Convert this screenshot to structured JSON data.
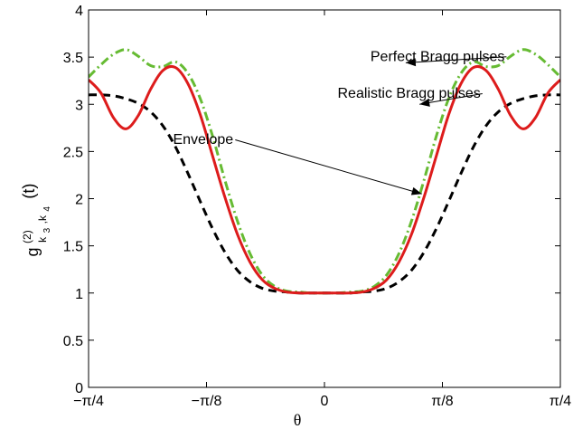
{
  "chart_data": {
    "type": "line",
    "xlabel": "θ",
    "ylabel": {
      "base": "g",
      "superscript": "(2)",
      "sub_main": "k",
      "sub_idx1": "3",
      "sub_sep": ",k",
      "sub_idx2": "4",
      "suffix": "(t)"
    },
    "xlim": [
      -0.7853981634,
      0.7853981634
    ],
    "ylim": [
      0,
      4
    ],
    "xticks": [
      {
        "value": -0.7853981634,
        "label": "−π/4"
      },
      {
        "value": -0.3926990817,
        "label": "−π/8"
      },
      {
        "value": 0,
        "label": "0"
      },
      {
        "value": 0.3926990817,
        "label": "π/8"
      },
      {
        "value": 0.7853981634,
        "label": "π/4"
      }
    ],
    "yticks": [
      {
        "value": 0,
        "label": "0"
      },
      {
        "value": 0.5,
        "label": "0.5"
      },
      {
        "value": 1,
        "label": "1"
      },
      {
        "value": 1.5,
        "label": "1.5"
      },
      {
        "value": 2,
        "label": "2"
      },
      {
        "value": 2.5,
        "label": "2.5"
      },
      {
        "value": 3,
        "label": "3"
      },
      {
        "value": 3.5,
        "label": "3.5"
      },
      {
        "value": 4,
        "label": "4"
      }
    ],
    "grid": false,
    "series": [
      {
        "name": "Perfect Bragg pulses",
        "color": "#66bb33",
        "dash": "dashdot",
        "x": [
          -0.7854,
          -0.7441,
          -0.7028,
          -0.6615,
          -0.6201,
          -0.5788,
          -0.5375,
          -0.4962,
          -0.4548,
          -0.4135,
          -0.3722,
          -0.3309,
          -0.2895,
          -0.2482,
          -0.2069,
          -0.1656,
          -0.1242,
          -0.0829,
          -0.0416,
          0.0,
          0.0416,
          0.0829,
          0.1242,
          0.1656,
          0.2069,
          0.2482,
          0.2895,
          0.3309,
          0.3722,
          0.4135,
          0.4548,
          0.4962,
          0.5375,
          0.5788,
          0.6201,
          0.6615,
          0.7028,
          0.7441,
          0.7854
        ],
        "y": [
          3.29,
          3.42,
          3.53,
          3.58,
          3.51,
          3.41,
          3.4,
          3.45,
          3.33,
          3.06,
          2.66,
          2.19,
          1.76,
          1.42,
          1.19,
          1.07,
          1.02,
          1.01,
          1.0,
          1.0,
          1.0,
          1.01,
          1.02,
          1.07,
          1.19,
          1.42,
          1.76,
          2.19,
          2.66,
          3.06,
          3.33,
          3.45,
          3.4,
          3.41,
          3.51,
          3.58,
          3.53,
          3.42,
          3.29
        ]
      },
      {
        "name": "Realistic Bragg pulses",
        "color": "#dd1c1c",
        "dash": "solid",
        "x": [
          -0.7854,
          -0.7441,
          -0.7028,
          -0.6615,
          -0.6201,
          -0.5788,
          -0.5375,
          -0.4962,
          -0.4548,
          -0.4135,
          -0.3722,
          -0.3309,
          -0.2895,
          -0.2482,
          -0.2069,
          -0.1656,
          -0.1242,
          -0.0829,
          -0.0416,
          0.0,
          0.0416,
          0.0829,
          0.1242,
          0.1656,
          0.2069,
          0.2482,
          0.2895,
          0.3309,
          0.3722,
          0.4135,
          0.4548,
          0.4962,
          0.5375,
          0.5788,
          0.6201,
          0.6615,
          0.7028,
          0.7441,
          0.7854
        ],
        "y": [
          3.26,
          3.12,
          2.86,
          2.74,
          2.88,
          3.16,
          3.36,
          3.39,
          3.22,
          2.89,
          2.45,
          2.01,
          1.62,
          1.33,
          1.14,
          1.05,
          1.01,
          1.0,
          1.0,
          1.0,
          1.0,
          1.0,
          1.01,
          1.05,
          1.14,
          1.33,
          1.62,
          2.01,
          2.45,
          2.89,
          3.22,
          3.39,
          3.36,
          3.16,
          2.88,
          2.74,
          2.86,
          3.12,
          3.26
        ]
      },
      {
        "name": "Envelope",
        "color": "#000000",
        "dash": "dashed",
        "x": [
          -0.7854,
          -0.7441,
          -0.7028,
          -0.6615,
          -0.6201,
          -0.5788,
          -0.5375,
          -0.4962,
          -0.4548,
          -0.4135,
          -0.3722,
          -0.3309,
          -0.2895,
          -0.2482,
          -0.2069,
          -0.1656,
          -0.1242,
          -0.0829,
          -0.0416,
          0.0,
          0.0416,
          0.0829,
          0.1242,
          0.1656,
          0.2069,
          0.2482,
          0.2895,
          0.3309,
          0.3722,
          0.4135,
          0.4548,
          0.4962,
          0.5375,
          0.5788,
          0.6201,
          0.6615,
          0.7028,
          0.7441,
          0.7854
        ],
        "y": [
          3.1,
          3.1,
          3.09,
          3.06,
          3.01,
          2.92,
          2.77,
          2.55,
          2.27,
          1.97,
          1.68,
          1.43,
          1.24,
          1.12,
          1.05,
          1.02,
          1.01,
          1.0,
          1.0,
          1.0,
          1.0,
          1.0,
          1.01,
          1.02,
          1.05,
          1.12,
          1.24,
          1.43,
          1.68,
          1.97,
          2.27,
          2.55,
          2.77,
          2.92,
          3.01,
          3.06,
          3.09,
          3.1,
          3.1
        ]
      }
    ],
    "annotations": [
      {
        "text": "Perfect Bragg pulses",
        "x": 0.1531,
        "y": 3.46,
        "arrow_x": 0.2705,
        "arrow_y": 3.44
      },
      {
        "text": "Realistic Bragg pulses",
        "x": 0.0436,
        "y": 3.07,
        "arrow_x": 0.3166,
        "arrow_y": 3.0
      },
      {
        "text": "Envelope",
        "x": -0.5041,
        "y": 2.58,
        "arrow_x": 0.3241,
        "arrow_y": 2.05
      }
    ]
  }
}
